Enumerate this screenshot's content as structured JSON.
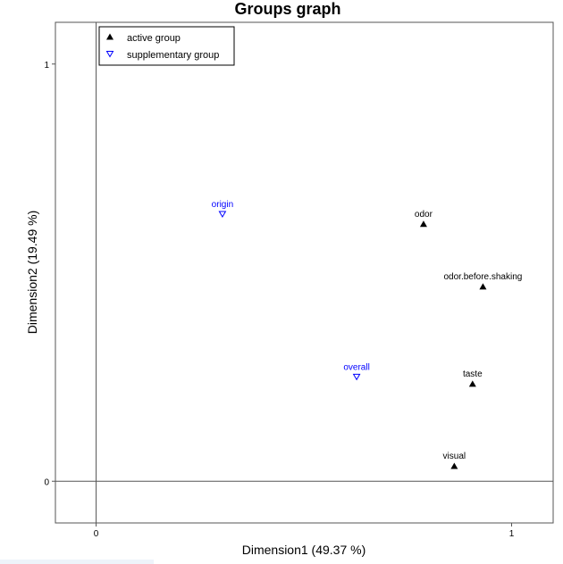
{
  "chart_data": {
    "type": "scatter",
    "title": "Groups graph",
    "xlabel": "Dimension1 (49.37 %)",
    "ylabel": "Dimension2 (19.49 %)",
    "xlim": [
      -0.098,
      1.1
    ],
    "ylim": [
      -0.1,
      1.1
    ],
    "xticks": [
      "0",
      "1"
    ],
    "yticks": [
      "0",
      "1"
    ],
    "grid": false,
    "legend_position": "top-left",
    "series": [
      {
        "name": "active group",
        "marker": "triangle-up",
        "color": "#000000",
        "points": [
          {
            "label": "odor",
            "x": 0.788,
            "y": 0.617
          },
          {
            "label": "odor.before.shaking",
            "x": 0.931,
            "y": 0.467
          },
          {
            "label": "taste",
            "x": 0.906,
            "y": 0.234
          },
          {
            "label": "visual",
            "x": 0.862,
            "y": 0.037
          }
        ]
      },
      {
        "name": "supplementary group",
        "marker": "triangle-down-open",
        "color": "#0000ff",
        "points": [
          {
            "label": "origin",
            "x": 0.304,
            "y": 0.64
          },
          {
            "label": "overall",
            "x": 0.627,
            "y": 0.25
          }
        ]
      }
    ]
  }
}
